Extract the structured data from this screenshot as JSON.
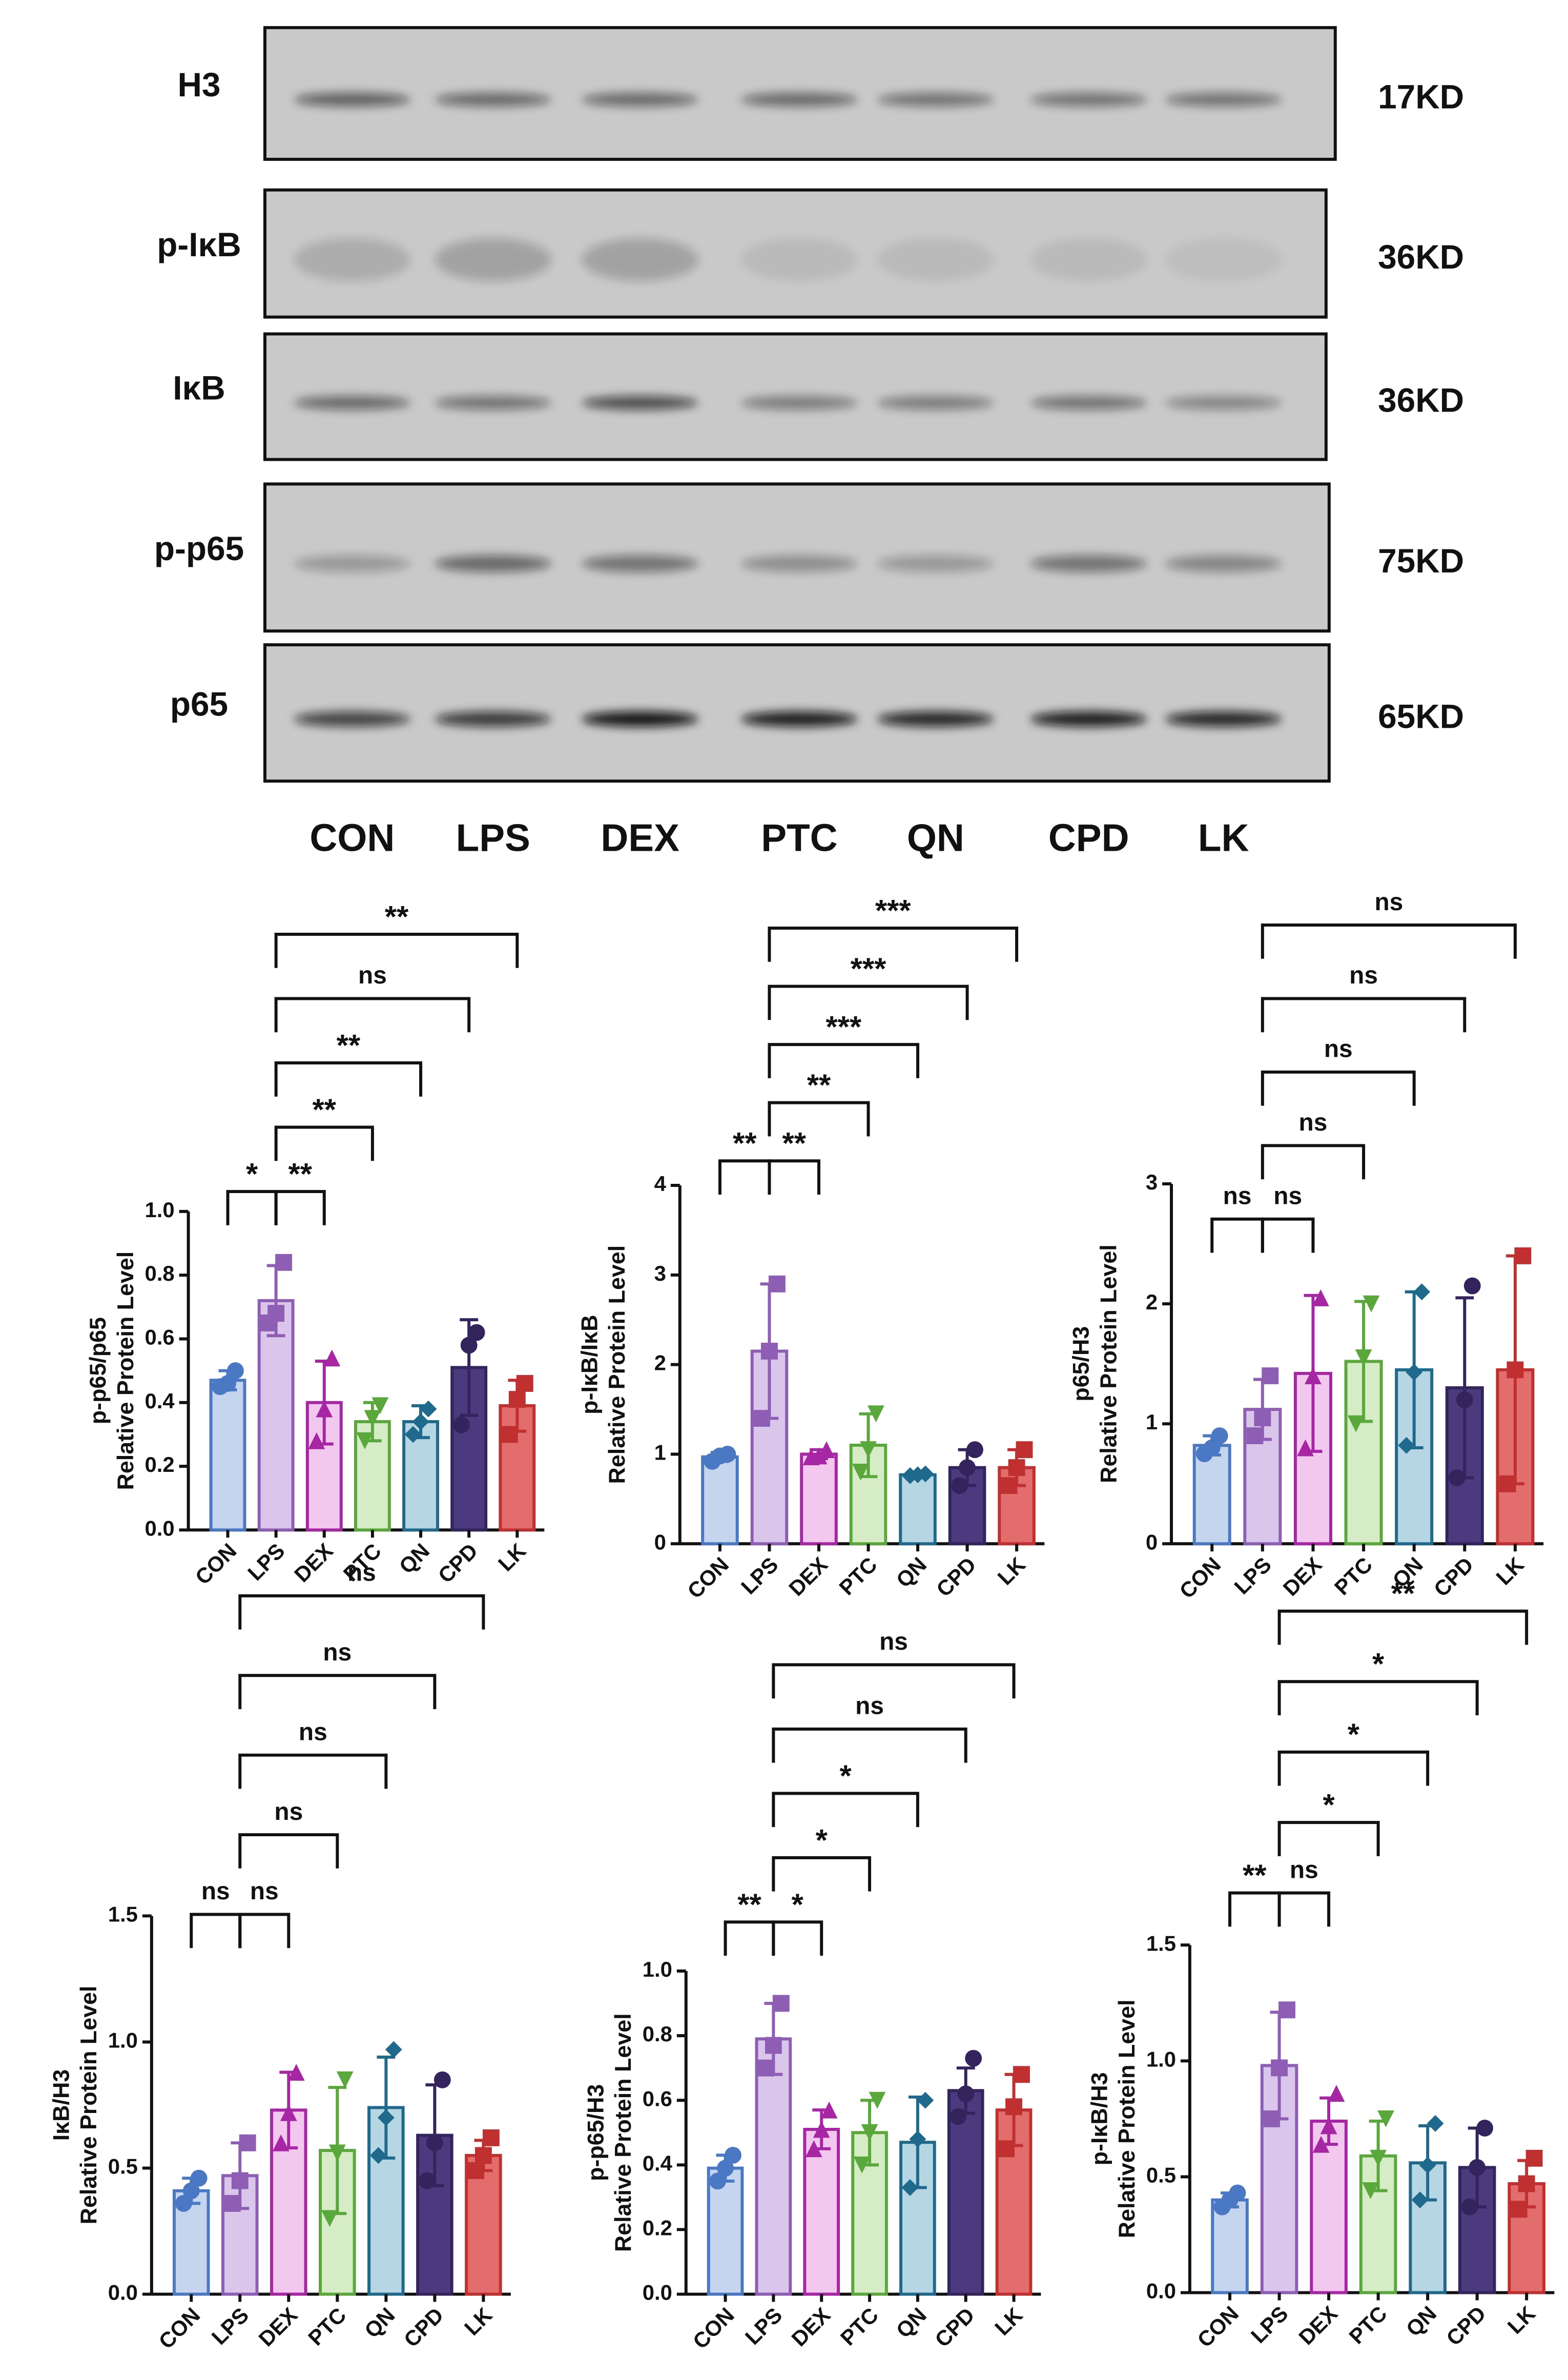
{
  "blot": {
    "rows": [
      {
        "label": "H3",
        "size": "17KD"
      },
      {
        "label": "p-IκB",
        "size": "36KD"
      },
      {
        "label": "IκB",
        "size": "36KD"
      },
      {
        "label": "p-p65",
        "size": "75KD"
      },
      {
        "label": "p65",
        "size": "65KD"
      }
    ],
    "lanes": [
      "CON",
      "LPS",
      "DEX",
      "PTC",
      "QN",
      "CPD",
      "LK"
    ]
  },
  "group_colors": {
    "edge": [
      "#4a78c2",
      "#8e5eb5",
      "#a626a4",
      "#5aa83c",
      "#1f6a8c",
      "#33245e",
      "#c03030"
    ],
    "fill": [
      "#c5d5ee",
      "#d9c6ea",
      "#f3c8ee",
      "#d5ecc6",
      "#b6d6e4",
      "#4b3b7e",
      "#e36d6d"
    ]
  },
  "chart_data": [
    {
      "type": "bar",
      "ylabel": [
        "p-p65/p65",
        "Relative Protein Level"
      ],
      "categories": [
        "CON",
        "LPS",
        "DEX",
        "PTC",
        "QN",
        "CPD",
        "LK"
      ],
      "values": [
        0.47,
        0.72,
        0.4,
        0.34,
        0.34,
        0.51,
        0.39
      ],
      "errors": [
        0.03,
        0.11,
        0.13,
        0.06,
        0.05,
        0.15,
        0.08
      ],
      "points": [
        [
          0.45,
          0.5,
          0.46
        ],
        [
          0.65,
          0.84,
          0.68
        ],
        [
          0.28,
          0.54,
          0.38
        ],
        [
          0.28,
          0.39,
          0.35
        ],
        [
          0.3,
          0.38,
          0.34
        ],
        [
          0.33,
          0.62,
          0.58
        ],
        [
          0.3,
          0.46,
          0.41
        ]
      ],
      "ylim": [
        0,
        1
      ],
      "yticks": [
        {
          "value": 0,
          "label": "0.0"
        },
        0.2,
        0.4,
        0.6,
        0.8,
        {
          "value": 1,
          "label": "1.0"
        }
      ],
      "comparisons": [
        {
          "groups": [
            "CON",
            "LPS"
          ],
          "label": "*"
        },
        {
          "groups": [
            "LPS",
            "DEX"
          ],
          "label": "**"
        },
        {
          "groups": [
            "LPS",
            "PTC"
          ],
          "label": "**"
        },
        {
          "groups": [
            "LPS",
            "QN"
          ],
          "label": "**"
        },
        {
          "groups": [
            "LPS",
            "CPD"
          ],
          "label": "ns"
        },
        {
          "groups": [
            "LPS",
            "LK"
          ],
          "label": "**"
        }
      ]
    },
    {
      "type": "bar",
      "ylabel": [
        "p-IκB/IκB",
        "Relative Protein Level"
      ],
      "categories": [
        "CON",
        "LPS",
        "DEX",
        "PTC",
        "QN",
        "CPD",
        "LK"
      ],
      "values": [
        0.97,
        2.15,
        1.0,
        1.1,
        0.77,
        0.85,
        0.85
      ],
      "errors": [
        0.05,
        0.75,
        0.05,
        0.35,
        0.02,
        0.2,
        0.2
      ],
      "points": [
        [
          0.92,
          1.0,
          0.98
        ],
        [
          1.4,
          2.9,
          2.15
        ],
        [
          0.97,
          1.05,
          0.98
        ],
        [
          0.8,
          1.45,
          1.05
        ],
        [
          0.76,
          0.78,
          0.77
        ],
        [
          0.65,
          1.05,
          0.85
        ],
        [
          0.65,
          1.05,
          0.85
        ]
      ],
      "ylim": [
        0,
        4
      ],
      "yticks": [
        0,
        1,
        2,
        3,
        4
      ],
      "comparisons": [
        {
          "groups": [
            "CON",
            "LPS"
          ],
          "label": "**"
        },
        {
          "groups": [
            "LPS",
            "DEX"
          ],
          "label": "**"
        },
        {
          "groups": [
            "LPS",
            "PTC"
          ],
          "label": "**"
        },
        {
          "groups": [
            "LPS",
            "QN"
          ],
          "label": "***"
        },
        {
          "groups": [
            "LPS",
            "CPD"
          ],
          "label": "***"
        },
        {
          "groups": [
            "LPS",
            "LK"
          ],
          "label": "***"
        }
      ]
    },
    {
      "type": "bar",
      "ylabel": [
        "p65/H3",
        "Relative Protein Level"
      ],
      "categories": [
        "CON",
        "LPS",
        "DEX",
        "PTC",
        "QN",
        "CPD",
        "LK"
      ],
      "values": [
        0.82,
        1.12,
        1.42,
        1.52,
        1.45,
        1.3,
        1.45
      ],
      "errors": [
        0.08,
        0.25,
        0.65,
        0.5,
        0.65,
        0.75,
        0.95
      ],
      "points": [
        [
          0.75,
          0.9,
          0.8
        ],
        [
          0.9,
          1.4,
          1.05
        ],
        [
          0.8,
          2.05,
          1.4
        ],
        [
          1.0,
          2.0,
          1.55
        ],
        [
          0.82,
          2.1,
          1.43
        ],
        [
          0.55,
          2.15,
          1.2
        ],
        [
          0.5,
          2.4,
          1.45
        ]
      ],
      "ylim": [
        0,
        3
      ],
      "yticks": [
        0,
        1,
        2,
        3
      ],
      "comparisons": [
        {
          "groups": [
            "CON",
            "LPS"
          ],
          "label": "ns"
        },
        {
          "groups": [
            "LPS",
            "DEX"
          ],
          "label": "ns"
        },
        {
          "groups": [
            "LPS",
            "PTC"
          ],
          "label": "ns"
        },
        {
          "groups": [
            "LPS",
            "QN"
          ],
          "label": "ns"
        },
        {
          "groups": [
            "LPS",
            "CPD"
          ],
          "label": "ns"
        },
        {
          "groups": [
            "LPS",
            "LK"
          ],
          "label": "ns"
        }
      ]
    },
    {
      "type": "bar",
      "ylabel": [
        "IκB/H3",
        "Relative Protein Level"
      ],
      "categories": [
        "CON",
        "LPS",
        "DEX",
        "PTC",
        "QN",
        "CPD",
        "LK"
      ],
      "values": [
        0.41,
        0.47,
        0.73,
        0.57,
        0.74,
        0.63,
        0.55
      ],
      "errors": [
        0.05,
        0.13,
        0.15,
        0.25,
        0.2,
        0.2,
        0.06
      ],
      "points": [
        [
          0.36,
          0.46,
          0.41
        ],
        [
          0.36,
          0.6,
          0.45
        ],
        [
          0.6,
          0.88,
          0.72
        ],
        [
          0.3,
          0.85,
          0.56
        ],
        [
          0.55,
          0.97,
          0.7
        ],
        [
          0.45,
          0.85,
          0.6
        ],
        [
          0.49,
          0.62,
          0.55
        ]
      ],
      "ylim": [
        0,
        1.5
      ],
      "yticks": [
        {
          "value": 0,
          "label": "0.0"
        },
        0.5,
        {
          "value": 1,
          "label": "1.0"
        },
        1.5
      ],
      "comparisons": [
        {
          "groups": [
            "CON",
            "LPS"
          ],
          "label": "ns"
        },
        {
          "groups": [
            "LPS",
            "DEX"
          ],
          "label": "ns"
        },
        {
          "groups": [
            "LPS",
            "PTC"
          ],
          "label": "ns"
        },
        {
          "groups": [
            "LPS",
            "QN"
          ],
          "label": "ns"
        },
        {
          "groups": [
            "LPS",
            "CPD"
          ],
          "label": "ns"
        },
        {
          "groups": [
            "LPS",
            "LK"
          ],
          "label": "ns"
        }
      ]
    },
    {
      "type": "bar",
      "ylabel": [
        "p-p65/H3",
        "Relative Protein Level"
      ],
      "categories": [
        "CON",
        "LPS",
        "DEX",
        "PTC",
        "QN",
        "CPD",
        "LK"
      ],
      "values": [
        0.39,
        0.79,
        0.51,
        0.5,
        0.47,
        0.63,
        0.57
      ],
      "errors": [
        0.04,
        0.11,
        0.06,
        0.1,
        0.14,
        0.07,
        0.11
      ],
      "points": [
        [
          0.35,
          0.43,
          0.39
        ],
        [
          0.7,
          0.9,
          0.77
        ],
        [
          0.45,
          0.57,
          0.51
        ],
        [
          0.4,
          0.6,
          0.5
        ],
        [
          0.33,
          0.6,
          0.48
        ],
        [
          0.55,
          0.73,
          0.62
        ],
        [
          0.45,
          0.68,
          0.58
        ]
      ],
      "ylim": [
        0,
        1
      ],
      "yticks": [
        {
          "value": 0,
          "label": "0.0"
        },
        0.2,
        0.4,
        0.6,
        0.8,
        {
          "value": 1,
          "label": "1.0"
        }
      ],
      "comparisons": [
        {
          "groups": [
            "CON",
            "LPS"
          ],
          "label": "**"
        },
        {
          "groups": [
            "LPS",
            "DEX"
          ],
          "label": "*"
        },
        {
          "groups": [
            "LPS",
            "PTC"
          ],
          "label": "*"
        },
        {
          "groups": [
            "LPS",
            "QN"
          ],
          "label": "*"
        },
        {
          "groups": [
            "LPS",
            "CPD"
          ],
          "label": "ns"
        },
        {
          "groups": [
            "LPS",
            "LK"
          ],
          "label": "ns"
        }
      ]
    },
    {
      "type": "bar",
      "ylabel": [
        "p-IκB/H3",
        "Relative Protein Level"
      ],
      "categories": [
        "CON",
        "LPS",
        "DEX",
        "PTC",
        "QN",
        "CPD",
        "LK"
      ],
      "values": [
        0.4,
        0.98,
        0.74,
        0.59,
        0.56,
        0.54,
        0.47
      ],
      "errors": [
        0.03,
        0.23,
        0.1,
        0.15,
        0.16,
        0.17,
        0.1
      ],
      "points": [
        [
          0.37,
          0.43,
          0.4
        ],
        [
          0.75,
          1.22,
          0.97
        ],
        [
          0.64,
          0.86,
          0.72
        ],
        [
          0.44,
          0.75,
          0.58
        ],
        [
          0.4,
          0.73,
          0.55
        ],
        [
          0.37,
          0.71,
          0.54
        ],
        [
          0.36,
          0.58,
          0.47
        ]
      ],
      "ylim": [
        0,
        1.5
      ],
      "yticks": [
        {
          "value": 0,
          "label": "0.0"
        },
        0.5,
        {
          "value": 1,
          "label": "1.0"
        },
        1.5
      ],
      "comparisons": [
        {
          "groups": [
            "CON",
            "LPS"
          ],
          "label": "**"
        },
        {
          "groups": [
            "LPS",
            "DEX"
          ],
          "label": "ns"
        },
        {
          "groups": [
            "LPS",
            "PTC"
          ],
          "label": "*"
        },
        {
          "groups": [
            "LPS",
            "QN"
          ],
          "label": "*"
        },
        {
          "groups": [
            "LPS",
            "CPD"
          ],
          "label": "*"
        },
        {
          "groups": [
            "LPS",
            "LK"
          ],
          "label": "**"
        }
      ]
    }
  ]
}
